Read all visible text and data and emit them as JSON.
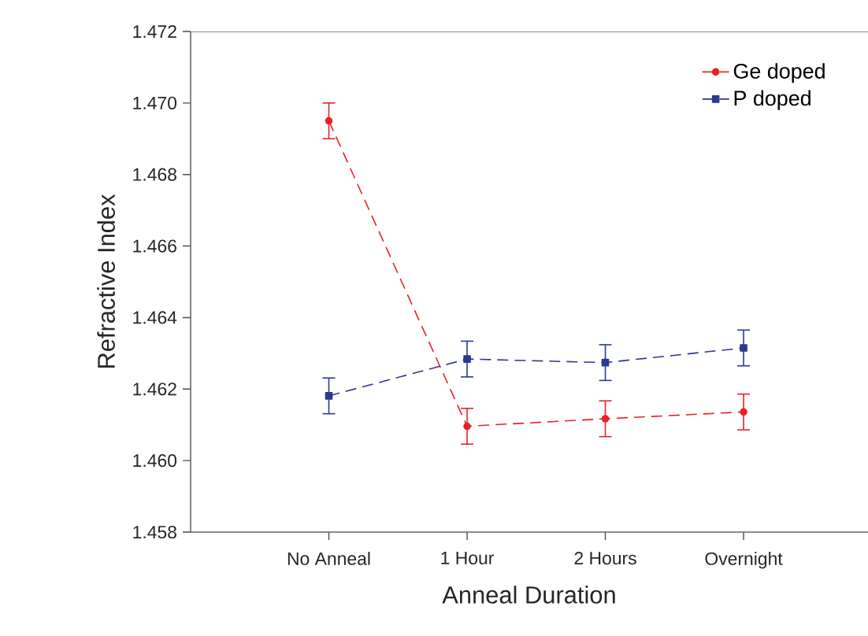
{
  "chart_data": {
    "type": "line",
    "xlabel": "Anneal Duration",
    "ylabel": "Refractive Index",
    "categories": [
      "No Anneal",
      "1 Hour",
      "2 Hours",
      "Overnight"
    ],
    "series": [
      {
        "name": "Ge doped",
        "color": "#e8202a",
        "marker": "circle",
        "values": [
          1.4695,
          1.46096,
          1.46117,
          1.46136
        ],
        "errors": [
          0.0005,
          0.0005,
          0.0005,
          0.0005
        ]
      },
      {
        "name": "P doped",
        "color": "#2b3990",
        "marker": "square",
        "values": [
          1.46181,
          1.46284,
          1.46274,
          1.46315
        ],
        "errors": [
          0.0005,
          0.0005,
          0.0005,
          0.0005
        ]
      }
    ],
    "ylim": [
      1.458,
      1.472
    ],
    "yticks": [
      1.458,
      {
        "value": 1.46,
        "label": "1.460"
      },
      1.462,
      1.464,
      1.466,
      1.468,
      {
        "value": 1.47,
        "label": "1.470"
      },
      1.472
    ],
    "line_style": "dashed",
    "grid": false,
    "legend": "top right"
  }
}
